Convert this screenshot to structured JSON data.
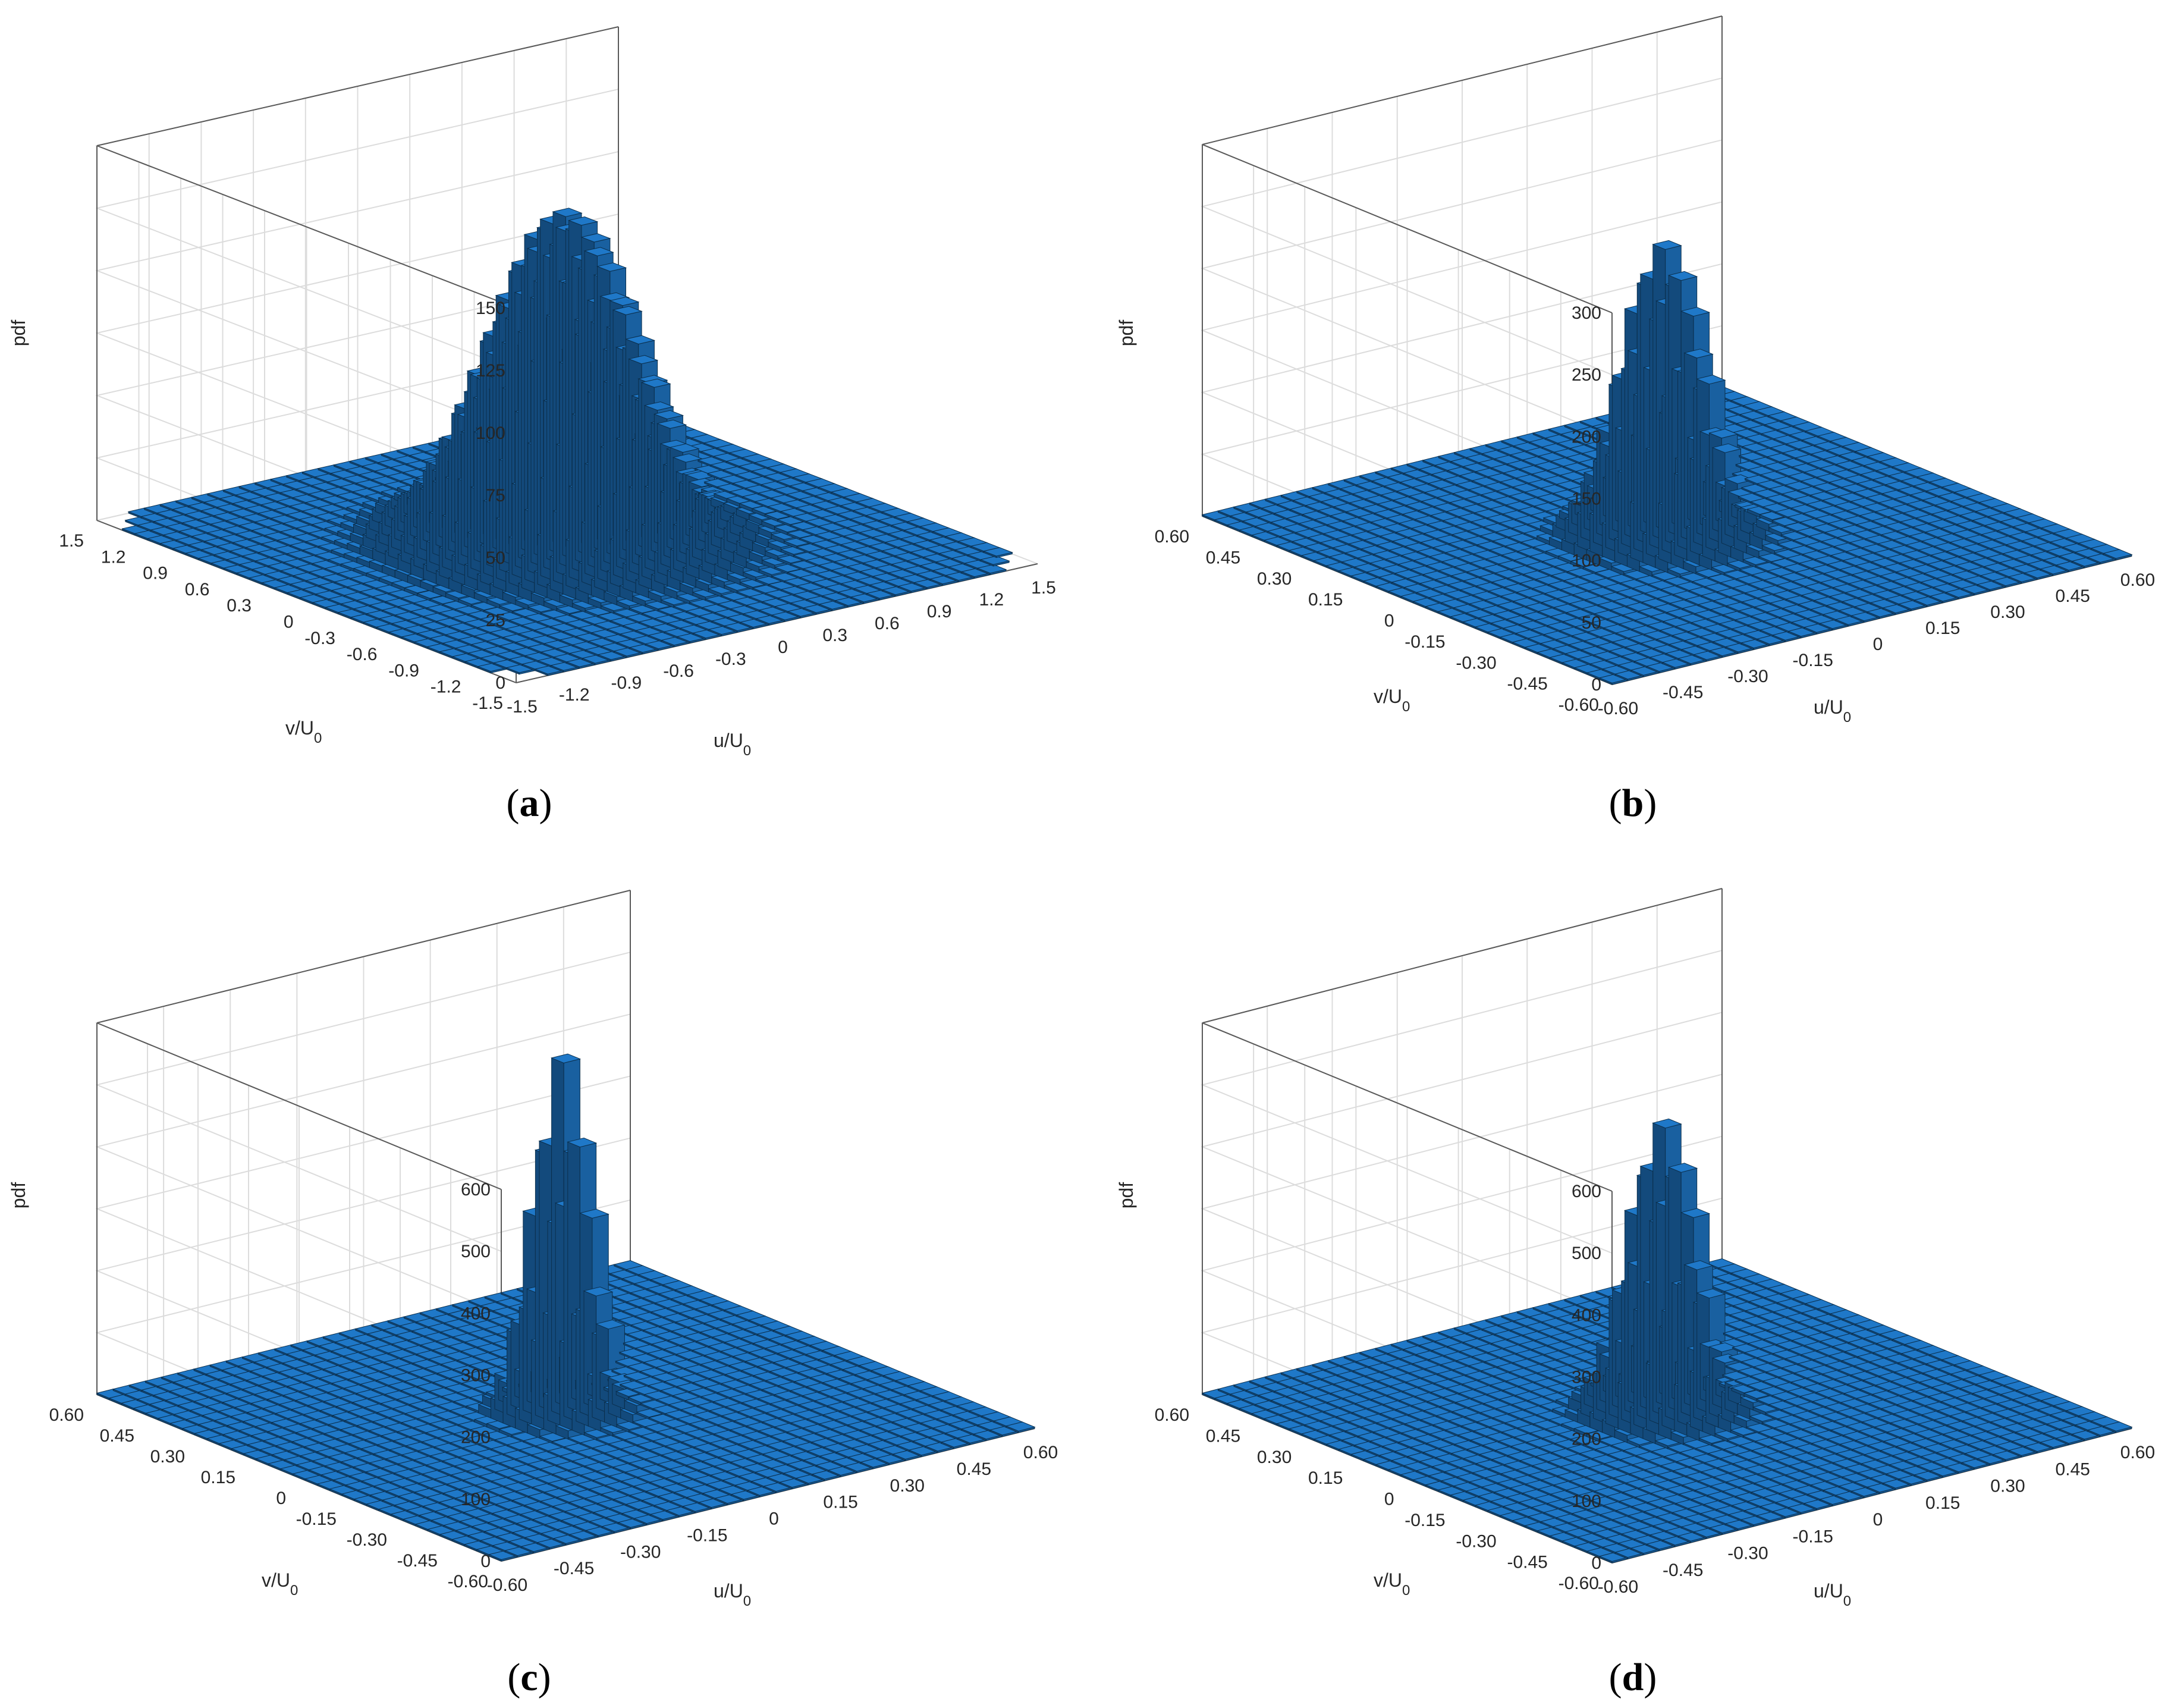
{
  "figure": {
    "bar_color": "#1f78c8",
    "edge_color": "#0b2f4d",
    "background": "#ffffff"
  },
  "chart_data": [
    {
      "type": "bar3d",
      "panel_label": "(a)",
      "panel_letter": "a",
      "zlabel": "pdf",
      "xlabel": "u/U",
      "ylabel": "v/U",
      "label_subscript": "0",
      "zlim": [
        0,
        150
      ],
      "zticks": [
        "0",
        "25",
        "50",
        "75",
        "100",
        "125",
        "150"
      ],
      "xlim": [
        -1.5,
        1.5
      ],
      "ylim": [
        -1.5,
        1.5
      ],
      "xticks": [
        "-1.5",
        "-1.2",
        "-0.9",
        "-0.6",
        "-0.3",
        "0",
        "0.3",
        "0.6",
        "0.9",
        "1.2",
        "1.5"
      ],
      "yticks": [
        "-1.5",
        "-1.2",
        "-0.9",
        "-0.6",
        "-0.3",
        "0",
        "0.3",
        "0.6",
        "0.9",
        "1.2",
        "1.5"
      ],
      "bins": 33,
      "peak": 132,
      "peak_u": 0.0,
      "peak_v": 0.0,
      "spread": 0.11,
      "support_radius": 1.3,
      "grid": true
    },
    {
      "type": "bar3d",
      "panel_label": "(b)",
      "panel_letter": "b",
      "zlabel": "pdf",
      "xlabel": "u/U",
      "ylabel": "v/U",
      "label_subscript": "0",
      "zlim": [
        0,
        300
      ],
      "zticks": [
        "0",
        "50",
        "100",
        "150",
        "200",
        "250",
        "300"
      ],
      "xlim": [
        -0.6,
        0.6
      ],
      "ylim": [
        -0.6,
        0.6
      ],
      "xticks": [
        "-0.60",
        "-0.45",
        "-0.30",
        "-0.15",
        "0",
        "0.15",
        "0.30",
        "0.45",
        "0.60"
      ],
      "yticks": [
        "-0.60",
        "-0.45",
        "-0.30",
        "-0.15",
        "0",
        "0.15",
        "0.30",
        "0.45",
        "0.60"
      ],
      "bins": 33,
      "peak": 235,
      "peak_u": 0.0,
      "peak_v": 0.0,
      "spread": 0.06,
      "support_radius": 2,
      "grid": true
    },
    {
      "type": "bar3d",
      "panel_label": "(c)",
      "panel_letter": "c",
      "zlabel": "pdf",
      "xlabel": "u/U",
      "ylabel": "v/U",
      "label_subscript": "0",
      "zlim": [
        0,
        600
      ],
      "zticks": [
        "0",
        "100",
        "200",
        "300",
        "400",
        "500",
        "600"
      ],
      "xlim": [
        -0.6,
        0.6
      ],
      "ylim": [
        -0.6,
        0.6
      ],
      "xticks": [
        "-0.60",
        "-0.45",
        "-0.30",
        "-0.15",
        "0",
        "0.15",
        "0.30",
        "0.45",
        "0.60"
      ],
      "yticks": [
        "-0.60",
        "-0.45",
        "-0.30",
        "-0.15",
        "0",
        "0.15",
        "0.30",
        "0.45",
        "0.60"
      ],
      "bins": 33,
      "peak": 570,
      "peak_u": 0.0,
      "peak_v": 0.0,
      "spread": 0.04,
      "support_radius": 2,
      "grid": true
    },
    {
      "type": "bar3d",
      "panel_label": "(d)",
      "panel_letter": "d",
      "zlabel": "pdf",
      "xlabel": "u/U",
      "ylabel": "v/U",
      "label_subscript": "0",
      "zlim": [
        0,
        600
      ],
      "zticks": [
        "0",
        "100",
        "200",
        "300",
        "400",
        "500",
        "600"
      ],
      "xlim": [
        -0.6,
        0.6
      ],
      "ylim": [
        -0.6,
        0.6
      ],
      "xticks": [
        "-0.60",
        "-0.45",
        "-0.30",
        "-0.15",
        "0",
        "0.15",
        "0.30",
        "0.45",
        "0.60"
      ],
      "yticks": [
        "-0.60",
        "-0.45",
        "-0.30",
        "-0.15",
        "0",
        "0.15",
        "0.30",
        "0.45",
        "0.60"
      ],
      "bins": 33,
      "peak": 465,
      "peak_u": 0.0,
      "peak_v": 0.0,
      "spread": 0.05,
      "support_radius": 2,
      "grid": true
    }
  ]
}
